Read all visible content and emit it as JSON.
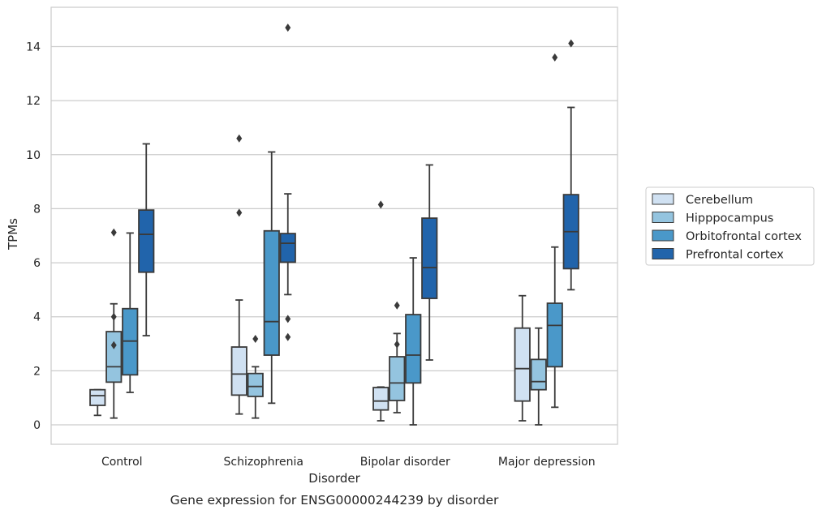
{
  "chart_data": {
    "type": "boxplot",
    "xlabel": "Disorder",
    "ylabel": "TPMs",
    "caption": "Gene expression for ENSG00000244239 by disorder",
    "ylim": [
      -0.7,
      15.5
    ],
    "yticks": [
      0,
      2,
      4,
      6,
      8,
      10,
      12,
      14
    ],
    "grid": "horizontal",
    "legend_position": "right",
    "categories": [
      "Control",
      "Schizophrenia",
      "Bipolar disorder",
      "Major depression"
    ],
    "series": [
      {
        "name": "Cerebellum",
        "color": "#d0e1f2",
        "boxes": [
          {
            "whislo": 0.35,
            "q1": 0.72,
            "med": 1.08,
            "q3": 1.3,
            "whishi": 1.3,
            "fliers": []
          },
          {
            "whislo": 0.4,
            "q1": 1.1,
            "med": 1.88,
            "q3": 2.88,
            "whishi": 4.62,
            "fliers": [
              7.85,
              10.6
            ]
          },
          {
            "whislo": 0.15,
            "q1": 0.55,
            "med": 0.88,
            "q3": 1.38,
            "whishi": 1.4,
            "fliers": [
              8.15
            ]
          },
          {
            "whislo": 0.15,
            "q1": 0.88,
            "med": 2.08,
            "q3": 3.58,
            "whishi": 4.78,
            "fliers": []
          }
        ]
      },
      {
        "name": "Hipppocampus",
        "color": "#94c4df",
        "boxes": [
          {
            "whislo": 0.25,
            "q1": 1.58,
            "med": 2.15,
            "q3": 3.45,
            "whishi": 4.48,
            "fliers": [
              2.95,
              4.0,
              7.12
            ]
          },
          {
            "whislo": 0.25,
            "q1": 1.05,
            "med": 1.42,
            "q3": 1.9,
            "whishi": 2.15,
            "fliers": [
              3.18
            ]
          },
          {
            "whislo": 0.45,
            "q1": 0.9,
            "med": 1.55,
            "q3": 2.52,
            "whishi": 3.38,
            "fliers": [
              2.98,
              4.42
            ]
          },
          {
            "whislo": 0.0,
            "q1": 1.3,
            "med": 1.6,
            "q3": 2.42,
            "whishi": 3.58,
            "fliers": []
          }
        ]
      },
      {
        "name": "Orbitofrontal cortex",
        "color": "#4a98c9",
        "boxes": [
          {
            "whislo": 1.2,
            "q1": 1.85,
            "med": 3.1,
            "q3": 4.3,
            "whishi": 7.1,
            "fliers": []
          },
          {
            "whislo": 0.8,
            "q1": 2.58,
            "med": 3.82,
            "q3": 7.18,
            "whishi": 10.1,
            "fliers": []
          },
          {
            "whislo": 0.0,
            "q1": 1.55,
            "med": 2.58,
            "q3": 4.08,
            "whishi": 6.18,
            "fliers": []
          },
          {
            "whislo": 0.65,
            "q1": 2.15,
            "med": 3.68,
            "q3": 4.5,
            "whishi": 6.58,
            "fliers": [
              13.6
            ]
          }
        ]
      },
      {
        "name": "Prefrontal cortex",
        "color": "#2164ab",
        "boxes": [
          {
            "whislo": 3.3,
            "q1": 5.65,
            "med": 7.05,
            "q3": 7.95,
            "whishi": 10.4,
            "fliers": []
          },
          {
            "whislo": 4.82,
            "q1": 6.02,
            "med": 6.72,
            "q3": 7.08,
            "whishi": 8.55,
            "fliers": [
              3.25,
              3.92,
              14.7
            ]
          },
          {
            "whislo": 2.4,
            "q1": 4.68,
            "med": 5.82,
            "q3": 7.65,
            "whishi": 9.62,
            "fliers": []
          },
          {
            "whislo": 5.0,
            "q1": 5.78,
            "med": 7.15,
            "q3": 8.52,
            "whishi": 11.75,
            "fliers": [
              14.12
            ]
          }
        ]
      }
    ]
  }
}
